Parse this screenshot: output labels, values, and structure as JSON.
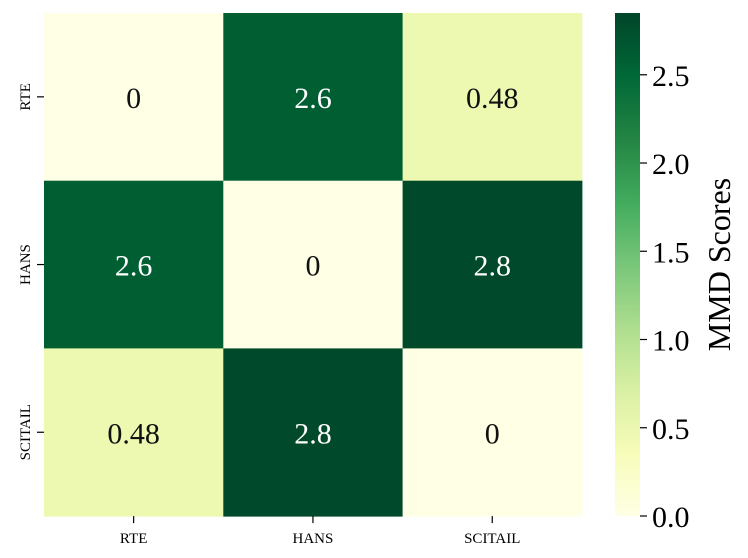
{
  "chart_data": {
    "type": "heatmap",
    "title": "",
    "x_categories": [
      "RTE",
      "HANS",
      "SCITAIL"
    ],
    "y_categories": [
      "RTE",
      "HANS",
      "SCITAIL"
    ],
    "values": [
      [
        0,
        2.6,
        0.48
      ],
      [
        2.6,
        0,
        2.8
      ],
      [
        0.48,
        2.8,
        0
      ]
    ],
    "annotations": [
      [
        "0",
        "2.6",
        "0.48"
      ],
      [
        "2.6",
        "0",
        "2.8"
      ],
      [
        "0.48",
        "2.8",
        "0"
      ]
    ],
    "colorbar": {
      "label": "MMD Scores",
      "range": [
        0,
        2.85
      ],
      "ticks": [
        0.0,
        0.5,
        1.0,
        1.5,
        2.0,
        2.5
      ],
      "tick_labels": [
        "0.0",
        "0.5",
        "1.0",
        "1.5",
        "2.0",
        "2.5"
      ],
      "colormap": "YlGn"
    }
  },
  "colors": {
    "scale": [
      "#ffffe5",
      "#f7fcb9",
      "#d9f0a3",
      "#addd8e",
      "#78c679",
      "#41ab5d",
      "#238443",
      "#006837",
      "#004529"
    ]
  }
}
